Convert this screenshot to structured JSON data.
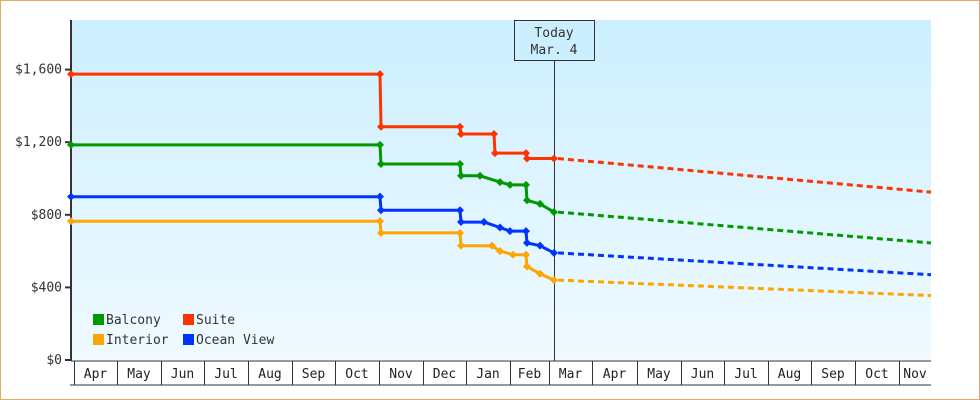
{
  "chart_data": {
    "type": "line",
    "title": "",
    "xlabel": "",
    "ylabel": "",
    "ylim": [
      0,
      1850
    ],
    "yticks": [
      {
        "value": 0,
        "label": "$0"
      },
      {
        "value": 400,
        "label": "$400"
      },
      {
        "value": 800,
        "label": "$800"
      },
      {
        "value": 1200,
        "label": "$1,200"
      },
      {
        "value": 1600,
        "label": "$1,600"
      }
    ],
    "months": [
      "Apr",
      "May",
      "Jun",
      "Jul",
      "Aug",
      "Sep",
      "Oct",
      "Nov",
      "Dec",
      "Jan",
      "Feb",
      "Mar",
      "Apr",
      "May",
      "Jun",
      "Jul",
      "Aug",
      "Sep",
      "Oct",
      "Nov"
    ],
    "today": {
      "line1": "Today",
      "line2": "Mar. 4"
    },
    "legend": [
      {
        "name": "Balcony",
        "color": "#009900"
      },
      {
        "name": "Suite",
        "color": "#ff3300"
      },
      {
        "name": "Interior",
        "color": "#ffa500"
      },
      {
        "name": "Ocean View",
        "color": "#0033ff"
      }
    ],
    "series": [
      {
        "name": "Suite",
        "color": "#ff3300",
        "history": [
          [
            71,
            1575
          ],
          [
            380,
            1575
          ],
          [
            381,
            1285
          ],
          [
            460,
            1285
          ],
          [
            461,
            1245
          ],
          [
            494,
            1245
          ],
          [
            495,
            1140
          ],
          [
            526,
            1140
          ],
          [
            527,
            1110
          ],
          [
            554,
            1110
          ]
        ],
        "forecast": [
          [
            554,
            1110
          ],
          [
            931,
            925
          ]
        ]
      },
      {
        "name": "Balcony",
        "color": "#009900",
        "history": [
          [
            71,
            1185
          ],
          [
            380,
            1185
          ],
          [
            381,
            1080
          ],
          [
            460,
            1080
          ],
          [
            461,
            1015
          ],
          [
            480,
            1015
          ],
          [
            500,
            980
          ],
          [
            510,
            965
          ],
          [
            526,
            965
          ],
          [
            527,
            880
          ],
          [
            540,
            860
          ],
          [
            554,
            815
          ]
        ],
        "forecast": [
          [
            554,
            815
          ],
          [
            931,
            645
          ]
        ]
      },
      {
        "name": "Ocean View",
        "color": "#0033ff",
        "history": [
          [
            71,
            900
          ],
          [
            380,
            900
          ],
          [
            381,
            825
          ],
          [
            460,
            825
          ],
          [
            461,
            760
          ],
          [
            484,
            760
          ],
          [
            500,
            730
          ],
          [
            510,
            710
          ],
          [
            526,
            710
          ],
          [
            527,
            645
          ],
          [
            540,
            630
          ],
          [
            554,
            590
          ]
        ],
        "forecast": [
          [
            554,
            590
          ],
          [
            931,
            470
          ]
        ]
      },
      {
        "name": "Interior",
        "color": "#ffa500",
        "history": [
          [
            71,
            765
          ],
          [
            380,
            765
          ],
          [
            381,
            700
          ],
          [
            460,
            700
          ],
          [
            461,
            630
          ],
          [
            492,
            630
          ],
          [
            500,
            600
          ],
          [
            513,
            580
          ],
          [
            526,
            580
          ],
          [
            527,
            515
          ],
          [
            540,
            475
          ],
          [
            554,
            440
          ]
        ],
        "forecast": [
          [
            554,
            440
          ],
          [
            931,
            355
          ]
        ]
      }
    ]
  }
}
